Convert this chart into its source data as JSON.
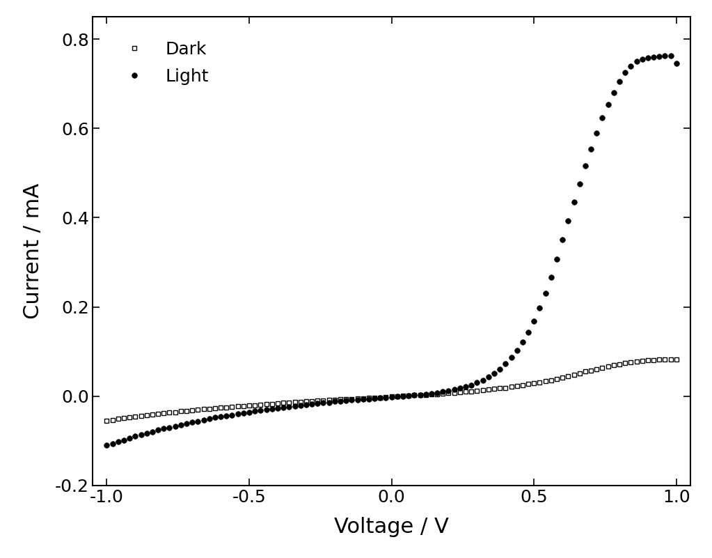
{
  "xlabel": "Voltage / V",
  "ylabel": "Current / mA",
  "xlim": [
    -1.05,
    1.05
  ],
  "ylim": [
    -0.2,
    0.85
  ],
  "xticks": [
    -1.0,
    -0.5,
    0.0,
    0.5,
    1.0
  ],
  "yticks": [
    -0.2,
    0.0,
    0.2,
    0.4,
    0.6,
    0.8
  ],
  "background_color": "#ffffff",
  "dark_color": "#000000",
  "light_color": "#000000",
  "dark_x": [
    -1.0,
    -0.98,
    -0.96,
    -0.94,
    -0.92,
    -0.9,
    -0.88,
    -0.86,
    -0.84,
    -0.82,
    -0.8,
    -0.78,
    -0.76,
    -0.74,
    -0.72,
    -0.7,
    -0.68,
    -0.66,
    -0.64,
    -0.62,
    -0.6,
    -0.58,
    -0.56,
    -0.54,
    -0.52,
    -0.5,
    -0.48,
    -0.46,
    -0.44,
    -0.42,
    -0.4,
    -0.38,
    -0.36,
    -0.34,
    -0.32,
    -0.3,
    -0.28,
    -0.26,
    -0.24,
    -0.22,
    -0.2,
    -0.18,
    -0.16,
    -0.14,
    -0.12,
    -0.1,
    -0.08,
    -0.06,
    -0.04,
    -0.02,
    0.0,
    0.02,
    0.04,
    0.06,
    0.08,
    0.1,
    0.12,
    0.14,
    0.16,
    0.18,
    0.2,
    0.22,
    0.24,
    0.26,
    0.28,
    0.3,
    0.32,
    0.34,
    0.36,
    0.38,
    0.4,
    0.42,
    0.44,
    0.46,
    0.48,
    0.5,
    0.52,
    0.54,
    0.56,
    0.58,
    0.6,
    0.62,
    0.64,
    0.66,
    0.68,
    0.7,
    0.72,
    0.74,
    0.76,
    0.78,
    0.8,
    0.82,
    0.84,
    0.86,
    0.88,
    0.9,
    0.92,
    0.94,
    0.96,
    0.98,
    1.0
  ],
  "dark_y": [
    -0.055,
    -0.053,
    -0.051,
    -0.049,
    -0.047,
    -0.046,
    -0.044,
    -0.043,
    -0.041,
    -0.04,
    -0.038,
    -0.037,
    -0.036,
    -0.034,
    -0.033,
    -0.032,
    -0.03,
    -0.029,
    -0.028,
    -0.027,
    -0.026,
    -0.025,
    -0.024,
    -0.023,
    -0.022,
    -0.021,
    -0.02,
    -0.019,
    -0.018,
    -0.017,
    -0.016,
    -0.015,
    -0.014,
    -0.013,
    -0.013,
    -0.012,
    -0.011,
    -0.01,
    -0.01,
    -0.009,
    -0.008,
    -0.007,
    -0.007,
    -0.006,
    -0.005,
    -0.005,
    -0.004,
    -0.003,
    -0.003,
    -0.002,
    -0.001,
    0.0,
    0.001,
    0.001,
    0.002,
    0.003,
    0.003,
    0.004,
    0.005,
    0.006,
    0.007,
    0.008,
    0.009,
    0.01,
    0.011,
    0.012,
    0.013,
    0.015,
    0.016,
    0.018,
    0.019,
    0.021,
    0.023,
    0.025,
    0.027,
    0.029,
    0.031,
    0.034,
    0.036,
    0.039,
    0.042,
    0.045,
    0.048,
    0.051,
    0.055,
    0.058,
    0.061,
    0.064,
    0.067,
    0.069,
    0.072,
    0.074,
    0.076,
    0.078,
    0.079,
    0.08,
    0.081,
    0.082,
    0.083,
    0.083,
    0.083
  ],
  "light_x": [
    -1.0,
    -0.98,
    -0.96,
    -0.94,
    -0.92,
    -0.9,
    -0.88,
    -0.86,
    -0.84,
    -0.82,
    -0.8,
    -0.78,
    -0.76,
    -0.74,
    -0.72,
    -0.7,
    -0.68,
    -0.66,
    -0.64,
    -0.62,
    -0.6,
    -0.58,
    -0.56,
    -0.54,
    -0.52,
    -0.5,
    -0.48,
    -0.46,
    -0.44,
    -0.42,
    -0.4,
    -0.38,
    -0.36,
    -0.34,
    -0.32,
    -0.3,
    -0.28,
    -0.26,
    -0.24,
    -0.22,
    -0.2,
    -0.18,
    -0.16,
    -0.14,
    -0.12,
    -0.1,
    -0.08,
    -0.06,
    -0.04,
    -0.02,
    0.0,
    0.02,
    0.04,
    0.06,
    0.08,
    0.1,
    0.12,
    0.14,
    0.16,
    0.18,
    0.2,
    0.22,
    0.24,
    0.26,
    0.28,
    0.3,
    0.32,
    0.34,
    0.36,
    0.38,
    0.4,
    0.42,
    0.44,
    0.46,
    0.48,
    0.5,
    0.52,
    0.54,
    0.56,
    0.58,
    0.6,
    0.62,
    0.64,
    0.66,
    0.68,
    0.7,
    0.72,
    0.74,
    0.76,
    0.78,
    0.8,
    0.82,
    0.84,
    0.86,
    0.88,
    0.9,
    0.92,
    0.94,
    0.96,
    0.98,
    1.0
  ],
  "light_y": [
    -0.11,
    -0.106,
    -0.102,
    -0.098,
    -0.094,
    -0.09,
    -0.087,
    -0.083,
    -0.08,
    -0.076,
    -0.073,
    -0.07,
    -0.067,
    -0.064,
    -0.061,
    -0.058,
    -0.056,
    -0.053,
    -0.051,
    -0.048,
    -0.046,
    -0.044,
    -0.042,
    -0.04,
    -0.038,
    -0.036,
    -0.034,
    -0.032,
    -0.03,
    -0.029,
    -0.027,
    -0.025,
    -0.024,
    -0.022,
    -0.021,
    -0.019,
    -0.018,
    -0.016,
    -0.015,
    -0.014,
    -0.012,
    -0.011,
    -0.01,
    -0.009,
    -0.008,
    -0.007,
    -0.006,
    -0.005,
    -0.004,
    -0.003,
    -0.002,
    -0.001,
    0.0,
    0.001,
    0.002,
    0.003,
    0.005,
    0.006,
    0.008,
    0.01,
    0.012,
    0.015,
    0.018,
    0.021,
    0.025,
    0.03,
    0.036,
    0.043,
    0.051,
    0.061,
    0.073,
    0.087,
    0.103,
    0.121,
    0.143,
    0.168,
    0.197,
    0.23,
    0.267,
    0.307,
    0.35,
    0.393,
    0.435,
    0.476,
    0.516,
    0.554,
    0.59,
    0.623,
    0.653,
    0.68,
    0.705,
    0.725,
    0.74,
    0.75,
    0.755,
    0.758,
    0.76,
    0.761,
    0.762,
    0.763,
    0.745
  ]
}
